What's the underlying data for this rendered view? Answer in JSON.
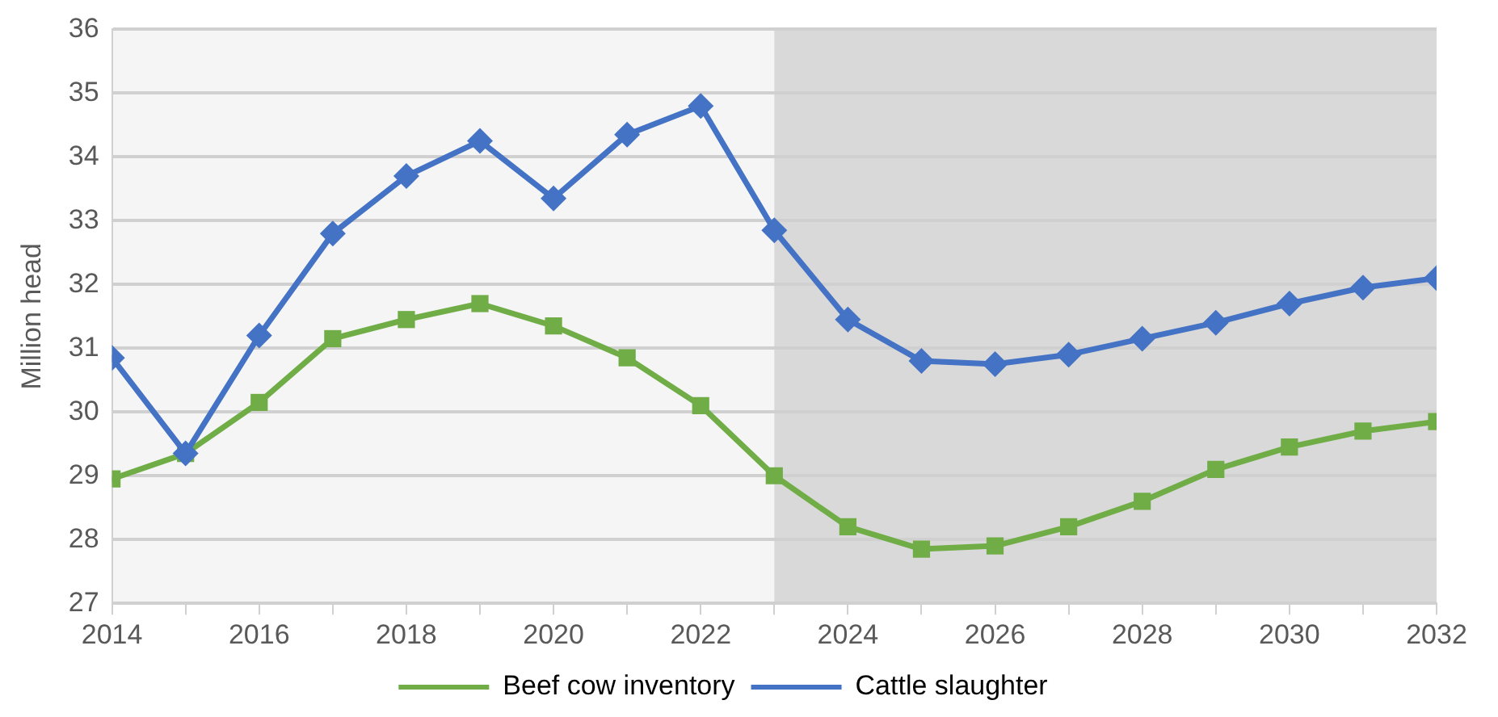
{
  "chart_data": {
    "type": "line",
    "ylabel": "Million head",
    "x": [
      2014,
      2015,
      2016,
      2017,
      2018,
      2019,
      2020,
      2021,
      2022,
      2023,
      2024,
      2025,
      2026,
      2027,
      2028,
      2029,
      2030,
      2031,
      2032
    ],
    "series": [
      {
        "name": "Beef cow inventory",
        "color": "#70ad47",
        "marker": "square",
        "values": [
          28.95,
          29.35,
          30.15,
          31.15,
          31.45,
          31.7,
          31.35,
          30.85,
          30.1,
          29.0,
          28.2,
          27.85,
          27.9,
          28.2,
          28.6,
          29.1,
          29.45,
          29.7,
          29.85
        ]
      },
      {
        "name": "Cattle slaughter",
        "color": "#4472c4",
        "marker": "diamond",
        "values": [
          30.85,
          29.35,
          31.2,
          32.8,
          33.7,
          34.25,
          33.35,
          34.35,
          34.8,
          32.85,
          31.45,
          30.8,
          30.75,
          30.9,
          31.15,
          31.4,
          31.7,
          31.95,
          32.1
        ]
      }
    ],
    "xlim": [
      2014,
      2032
    ],
    "xticks": [
      2014,
      {
        "value": 2015,
        "label": null
      },
      2016,
      {
        "value": 2017,
        "label": null
      },
      2018,
      {
        "value": 2019,
        "label": null
      },
      2020,
      {
        "value": 2021,
        "label": null
      },
      2022,
      {
        "value": 2023,
        "label": null
      },
      2024,
      {
        "value": 2025,
        "label": null
      },
      2026,
      {
        "value": 2027,
        "label": null
      },
      2028,
      {
        "value": 2029,
        "label": null
      },
      2030,
      {
        "value": 2031,
        "label": null
      },
      2032
    ],
    "ylim": [
      27,
      36
    ],
    "yticks": [
      27,
      28,
      29,
      30,
      31,
      32,
      33,
      34,
      35,
      36
    ],
    "bands": [
      {
        "axis": "x",
        "from": 2023,
        "to": 2032,
        "color": "#d9d9d9"
      }
    ],
    "grid": "y",
    "legend": "bottom",
    "line_style": "solid"
  }
}
